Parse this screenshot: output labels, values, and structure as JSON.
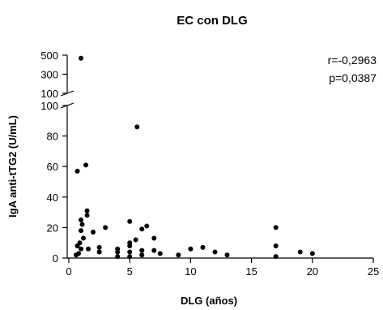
{
  "chart_data": {
    "type": "scatter",
    "title": "EC con DLG",
    "xlabel": "DLG (años)",
    "ylabel": "IgA anti-tTG2 (U/mL)",
    "xlim": [
      0,
      25
    ],
    "x_ticks": [
      "0",
      "5",
      "10",
      "15",
      "20",
      "25"
    ],
    "y_lower": {
      "ylim": [
        0,
        100
      ],
      "ticks": [
        "0",
        "20",
        "40",
        "60",
        "80",
        "100"
      ]
    },
    "y_upper": {
      "ylim": [
        100,
        500
      ],
      "ticks": [
        "100",
        "300",
        "500"
      ]
    },
    "axis_break": true,
    "grid": false,
    "annotations": [
      "r=-0,2963",
      "p=0,0387"
    ],
    "points": [
      {
        "x": 0.6,
        "y": 2
      },
      {
        "x": 0.7,
        "y": 57
      },
      {
        "x": 0.7,
        "y": 8
      },
      {
        "x": 0.8,
        "y": 3
      },
      {
        "x": 0.9,
        "y": 10
      },
      {
        "x": 1.0,
        "y": 468
      },
      {
        "x": 1.0,
        "y": 25
      },
      {
        "x": 1.0,
        "y": 18
      },
      {
        "x": 1.0,
        "y": 6
      },
      {
        "x": 1.1,
        "y": 22
      },
      {
        "x": 1.2,
        "y": 13
      },
      {
        "x": 1.4,
        "y": 61
      },
      {
        "x": 1.5,
        "y": 31
      },
      {
        "x": 1.5,
        "y": 28
      },
      {
        "x": 1.6,
        "y": 6
      },
      {
        "x": 2.0,
        "y": 17
      },
      {
        "x": 2.5,
        "y": 7
      },
      {
        "x": 2.5,
        "y": 4
      },
      {
        "x": 3.0,
        "y": 20
      },
      {
        "x": 4.0,
        "y": 6
      },
      {
        "x": 4.0,
        "y": 4
      },
      {
        "x": 4.0,
        "y": 1
      },
      {
        "x": 5.0,
        "y": 24
      },
      {
        "x": 5.0,
        "y": 10
      },
      {
        "x": 5.0,
        "y": 8
      },
      {
        "x": 5.0,
        "y": 4
      },
      {
        "x": 5.0,
        "y": 1
      },
      {
        "x": 5.5,
        "y": 12
      },
      {
        "x": 5.6,
        "y": 86
      },
      {
        "x": 6.0,
        "y": 19
      },
      {
        "x": 6.0,
        "y": 5
      },
      {
        "x": 6.0,
        "y": 2
      },
      {
        "x": 6.4,
        "y": 21
      },
      {
        "x": 7.0,
        "y": 13
      },
      {
        "x": 7.0,
        "y": 5
      },
      {
        "x": 7.5,
        "y": 3
      },
      {
        "x": 9.0,
        "y": 2
      },
      {
        "x": 10.0,
        "y": 6
      },
      {
        "x": 11.0,
        "y": 7
      },
      {
        "x": 12.0,
        "y": 4
      },
      {
        "x": 13.0,
        "y": 2
      },
      {
        "x": 17.0,
        "y": 20
      },
      {
        "x": 17.0,
        "y": 8
      },
      {
        "x": 17.0,
        "y": 1
      },
      {
        "x": 19.0,
        "y": 4
      },
      {
        "x": 20.0,
        "y": 3
      }
    ]
  }
}
